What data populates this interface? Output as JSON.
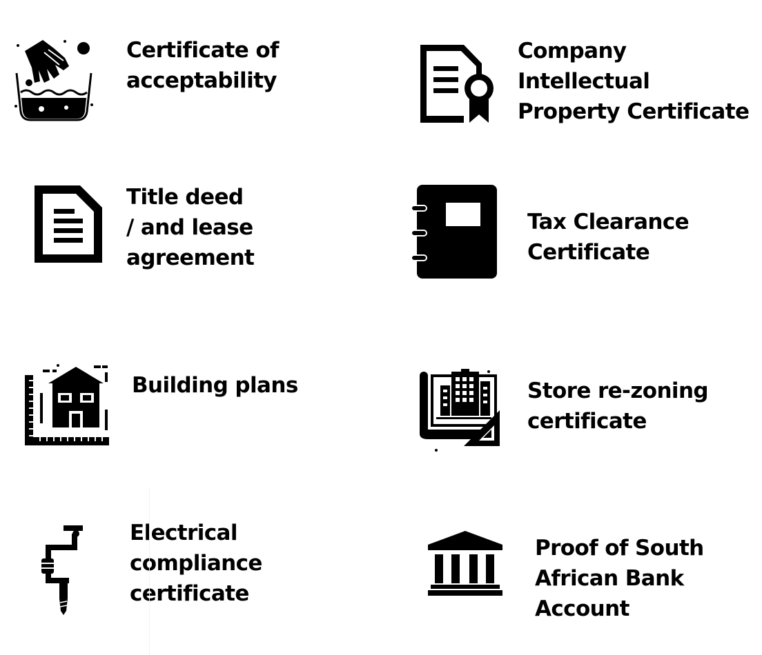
{
  "items": [
    {
      "id": "certificate-of-acceptability",
      "icon": "hand-washing-icon",
      "lines": [
        "Certificate of",
        "acceptability"
      ]
    },
    {
      "id": "company-intellectual-property-certificate",
      "icon": "certificate-ribbon-icon",
      "lines": [
        "Company",
        "Intellectual",
        "Property Certificate"
      ]
    },
    {
      "id": "title-deed-lease-agreement",
      "icon": "document-icon",
      "lines": [
        "Title deed",
        "/ and lease",
        "agreement"
      ]
    },
    {
      "id": "tax-clearance-certificate",
      "icon": "notebook-icon",
      "lines": [
        "Tax Clearance",
        "Certificate"
      ]
    },
    {
      "id": "building-plans",
      "icon": "house-blueprint-icon",
      "lines": [
        "Building plans"
      ]
    },
    {
      "id": "store-rezoning-certificate",
      "icon": "city-blueprint-icon",
      "lines": [
        "Store re-zoning",
        "certificate"
      ]
    },
    {
      "id": "electrical-compliance-certificate",
      "icon": "drill-icon",
      "lines": [
        "Electrical",
        "compliance",
        "certificate"
      ]
    },
    {
      "id": "proof-of-south-african-bank-account",
      "icon": "bank-icon",
      "lines": [
        "Proof of South",
        "African Bank",
        "Account"
      ]
    }
  ]
}
